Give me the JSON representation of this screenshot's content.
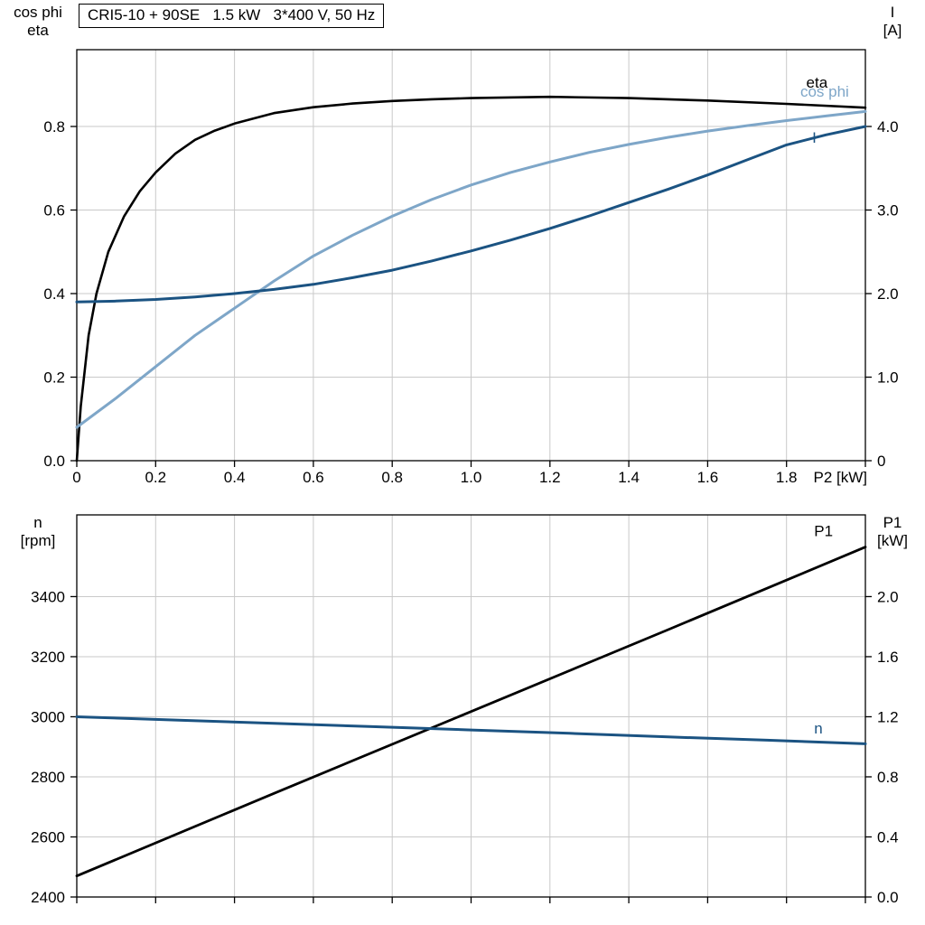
{
  "title_box": "CRI5-10 + 90SE   1.5 kW   3*400 V, 50 Hz",
  "colors": {
    "black": "#000000",
    "dark_blue": "#1b5382",
    "light_blue": "#7ea6c8",
    "grid": "#c9c9c9",
    "border": "#000000"
  },
  "chart_data": [
    {
      "type": "line",
      "name": "motor-electrical-panel",
      "title": "CRI5-10 + 90SE 1.5 kW 3*400 V, 50 Hz",
      "x_axis": {
        "range": [
          0,
          2.0
        ],
        "tick_values": [
          0,
          0.2,
          0.4,
          0.6,
          0.8,
          1.0,
          1.2,
          1.4,
          1.6,
          1.8,
          2.0
        ],
        "tick_labels": [
          "0",
          "0.2",
          "0.4",
          "0.6",
          "0.8",
          "1.0",
          "1.2",
          "1.4",
          "1.6",
          "1.8",
          ""
        ],
        "end_label": "P2 [kW]"
      },
      "left_axis": {
        "title_lines": [
          "cos phi",
          "eta"
        ],
        "range": [
          0,
          0.9838
        ],
        "tick_values": [
          0,
          0.2,
          0.4,
          0.6,
          0.8
        ],
        "tick_labels": [
          "0.0",
          "0.2",
          "0.4",
          "0.6",
          "0.8"
        ]
      },
      "right_axis": {
        "title_lines": [
          "I",
          "[A]"
        ],
        "range": [
          0,
          4.919
        ],
        "tick_values": [
          0,
          1.0,
          2.0,
          3.0,
          4.0
        ],
        "tick_labels": [
          "0",
          "1.0",
          "2.0",
          "3.0",
          "4.0"
        ]
      },
      "series": [
        {
          "name": "eta",
          "label": "eta",
          "axis": "left",
          "color": "black",
          "width": 2.6,
          "label_pos": {
            "x": 1.85,
            "y": 0.906
          },
          "x": [
            0,
            0.01,
            0.03,
            0.05,
            0.08,
            0.12,
            0.16,
            0.2,
            0.25,
            0.3,
            0.35,
            0.4,
            0.5,
            0.6,
            0.7,
            0.8,
            0.9,
            1.0,
            1.2,
            1.4,
            1.6,
            1.8,
            2.0
          ],
          "y": [
            0,
            0.13,
            0.3,
            0.4,
            0.5,
            0.585,
            0.645,
            0.69,
            0.735,
            0.768,
            0.79,
            0.807,
            0.832,
            0.846,
            0.855,
            0.861,
            0.865,
            0.868,
            0.871,
            0.868,
            0.862,
            0.854,
            0.845
          ]
        },
        {
          "name": "cos-phi",
          "label": "cos phi",
          "axis": "left",
          "color": "light_blue",
          "width": 3,
          "label_pos": {
            "x": 1.835,
            "y": 0.884
          },
          "x": [
            0,
            0.1,
            0.2,
            0.3,
            0.4,
            0.5,
            0.6,
            0.7,
            0.8,
            0.9,
            1.0,
            1.1,
            1.2,
            1.3,
            1.4,
            1.5,
            1.6,
            1.7,
            1.8,
            1.9,
            2.0
          ],
          "y": [
            0.08,
            0.15,
            0.225,
            0.3,
            0.365,
            0.43,
            0.49,
            0.54,
            0.585,
            0.625,
            0.66,
            0.69,
            0.715,
            0.738,
            0.757,
            0.774,
            0.789,
            0.802,
            0.814,
            0.825,
            0.836
          ]
        },
        {
          "name": "current",
          "label": "I",
          "axis": "right",
          "color": "dark_blue",
          "width": 3,
          "label_pos": {
            "x": 1.865,
            "y": 3.87
          },
          "x": [
            0,
            0.1,
            0.2,
            0.3,
            0.4,
            0.5,
            0.6,
            0.7,
            0.8,
            0.9,
            1.0,
            1.1,
            1.2,
            1.3,
            1.4,
            1.5,
            1.6,
            1.7,
            1.8,
            1.9,
            2.0
          ],
          "y": [
            1.9,
            1.91,
            1.93,
            1.96,
            2.0,
            2.05,
            2.11,
            2.19,
            2.28,
            2.39,
            2.51,
            2.64,
            2.78,
            2.93,
            3.09,
            3.25,
            3.42,
            3.6,
            3.78,
            3.9,
            4.0
          ]
        }
      ]
    },
    {
      "type": "line",
      "name": "speed-power-panel",
      "x_axis": {
        "range": [
          0,
          2.0
        ],
        "tick_values": [
          0,
          0.2,
          0.4,
          0.6,
          0.8,
          1.0,
          1.2,
          1.4,
          1.6,
          1.8,
          2.0
        ],
        "tick_labels": [
          "",
          "",
          "",
          "",
          "",
          "",
          "",
          "",
          "",
          "",
          ""
        ],
        "end_label": ""
      },
      "left_axis": {
        "title_lines": [
          "n",
          "[rpm]"
        ],
        "range": [
          2400,
          3672
        ],
        "tick_values": [
          2400,
          2600,
          2800,
          3000,
          3200,
          3400
        ],
        "tick_labels": [
          "2400",
          "2600",
          "2800",
          "3000",
          "3200",
          "3400"
        ]
      },
      "right_axis": {
        "title_lines": [
          "P1",
          "[kW]"
        ],
        "range": [
          0,
          2.544
        ],
        "tick_values": [
          0,
          0.4,
          0.8,
          1.2,
          1.6,
          2.0
        ],
        "tick_labels": [
          "0.0",
          "0.4",
          "0.8",
          "1.2",
          "1.6",
          "2.0"
        ]
      },
      "series": [
        {
          "name": "input-power",
          "label": "P1",
          "axis": "right",
          "color": "black",
          "width": 2.8,
          "label_pos": {
            "x": 1.87,
            "y": 2.44
          },
          "x": [
            0,
            0.5,
            1.0,
            1.5,
            2.0
          ],
          "y": [
            0.14,
            0.69,
            1.235,
            1.78,
            2.33
          ]
        },
        {
          "name": "speed",
          "label": "n",
          "axis": "left",
          "color": "dark_blue",
          "width": 3,
          "label_pos": {
            "x": 1.87,
            "y": 2962
          },
          "x": [
            0,
            0.25,
            0.5,
            0.75,
            1.0,
            1.25,
            1.5,
            1.75,
            2.0
          ],
          "y": [
            3000,
            2989,
            2978,
            2967,
            2956,
            2945,
            2933,
            2922,
            2910
          ]
        }
      ]
    }
  ]
}
